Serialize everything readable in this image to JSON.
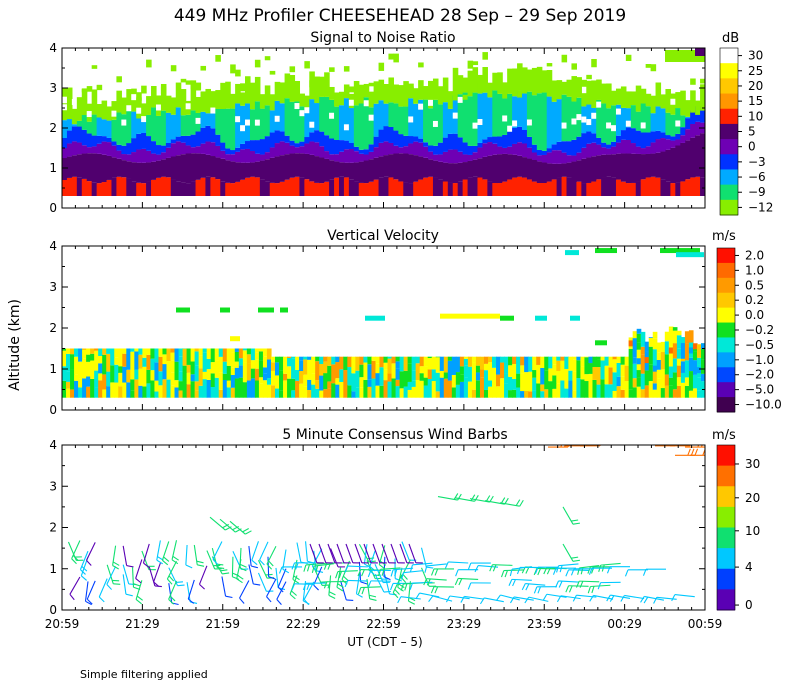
{
  "figure": {
    "title": "449 MHz Profiler CHEESEHEAD 28 Sep – 29 Sep 2019",
    "ylabel": "Altitude (km)",
    "xlabel": "UT  (CDT – 5)",
    "footnote": "Simple filtering applied"
  },
  "chart_data": [
    {
      "type": "heatmap",
      "title": "Signal to Noise Ratio",
      "ylabel": "Altitude (km)",
      "ylim": [
        0,
        4
      ],
      "yticks": [
        "0",
        "1",
        "2",
        "3",
        "4"
      ],
      "xlim": [
        "20:59",
        "00:59"
      ],
      "colorbar": {
        "unit": "dB",
        "labels": [
          "30",
          "25",
          "20",
          "15",
          "10",
          "5",
          "0",
          "−3",
          "−6",
          "−9",
          "−12"
        ],
        "colors": [
          "#ffffff",
          "#ffff00",
          "#ffc800",
          "#ff9600",
          "#ff2200",
          "#50006e",
          "#6e00b4",
          "#0032ff",
          "#00aaff",
          "#10e070",
          "#88ee00"
        ]
      },
      "description_bands": [
        {
          "range_km": [
            0.3,
            0.7
          ],
          "snr_db": "10 to 15"
        },
        {
          "range_km": [
            0.7,
            1.3
          ],
          "snr_db": "0 to 5"
        },
        {
          "range_km": [
            1.3,
            2.0
          ],
          "snr_db": "-6 to -3"
        },
        {
          "range_km": [
            2.0,
            2.8
          ],
          "snr_db": "-12 to -9"
        }
      ]
    },
    {
      "type": "heatmap",
      "title": "Vertical Velocity",
      "ylabel": "Altitude (km)",
      "ylim": [
        0,
        4
      ],
      "yticks": [
        "0",
        "1",
        "2",
        "3",
        "4"
      ],
      "colorbar": {
        "unit": "m/s",
        "labels": [
          "2.0",
          "1.0",
          "0.5",
          "0.2",
          "0.0",
          "−0.2",
          "−0.5",
          "−1.0",
          "−2.0",
          "−5.0",
          "−10.0"
        ],
        "colors": [
          "#ff1000",
          "#ff6a00",
          "#ff9a00",
          "#ffc800",
          "#ffff00",
          "#10e020",
          "#00e8d8",
          "#00a0ff",
          "#0048ff",
          "#5a00b4",
          "#400050"
        ]
      }
    },
    {
      "type": "scatter",
      "title": "5 Minute Consensus Wind Barbs",
      "ylabel": "Altitude (km)",
      "ylim": [
        0,
        4
      ],
      "yticks": [
        "0",
        "1",
        "2",
        "3",
        "4"
      ],
      "xticks": [
        "20:59",
        "21:29",
        "21:59",
        "22:29",
        "22:59",
        "23:29",
        "23:59",
        "00:29",
        "00:59"
      ],
      "colorbar": {
        "unit": "m/s",
        "labels": [
          "30",
          "20",
          "10",
          "4",
          "0"
        ],
        "colors": [
          "#ff1000",
          "#ff7000",
          "#ffc800",
          "#88ee00",
          "#10e070",
          "#00c8ff",
          "#0040ff",
          "#5a00b4"
        ]
      }
    }
  ]
}
